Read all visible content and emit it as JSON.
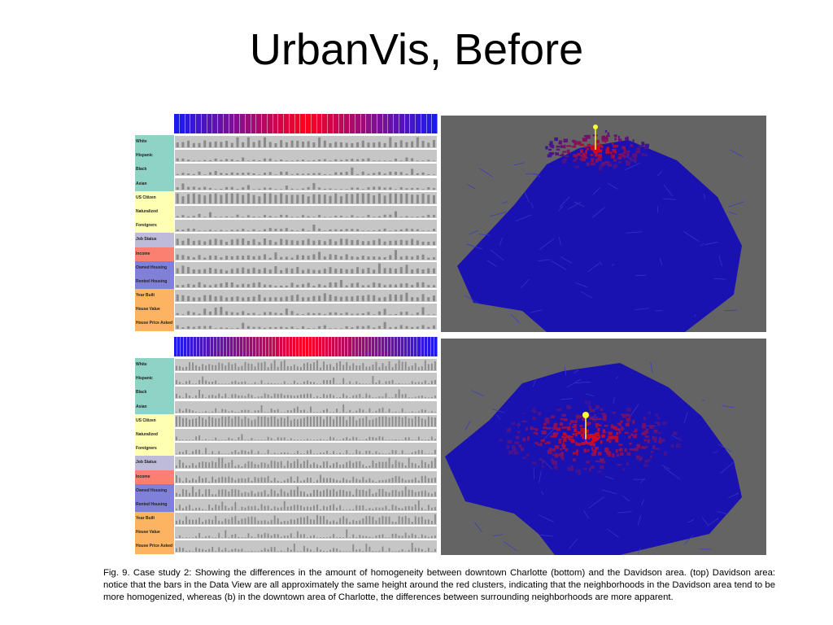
{
  "slide": {
    "title": "UrbanVis, Before"
  },
  "rows": [
    {
      "label": "White",
      "color": "#8fd3c7"
    },
    {
      "label": "Hispanic",
      "color": "#8fd3c7"
    },
    {
      "label": "Black",
      "color": "#8fd3c7"
    },
    {
      "label": "Asian",
      "color": "#8fd3c7"
    },
    {
      "label": "US Citizen",
      "color": "#ffffb3"
    },
    {
      "label": "Naturalized",
      "color": "#ffffb3"
    },
    {
      "label": "Foreigners",
      "color": "#ffffb3"
    },
    {
      "label": "Job Status",
      "color": "#bebada"
    },
    {
      "label": "Income",
      "color": "#fb8072"
    },
    {
      "label": "Owned Housing",
      "color": "#8080d8"
    },
    {
      "label": "Rented Housing",
      "color": "#8080d8"
    },
    {
      "label": "Year Built",
      "color": "#fdb462"
    },
    {
      "label": "House Value",
      "color": "#fdb462"
    },
    {
      "label": "House Price Asked",
      "color": "#fdb462"
    }
  ],
  "panels": {
    "top": {
      "columns": 48,
      "title": "(top) Davidson area"
    },
    "bottom": {
      "columns": 80,
      "title": "downtown Charlotte"
    }
  },
  "colors": {
    "scale_low": "#1a1af0",
    "scale_high": "#ff0000",
    "map_background": "#646464",
    "region": "#1a12b0",
    "marker": "#ffff33"
  },
  "caption": "Fig. 9.  Case study 2:  Showing the differences in the amount of homogeneity between downtown Charlotte (bottom) and the Davidson area. (top) Davidson area:  notice that the bars in the Data View are all approximately the same height around the red clusters, indicating that the neighborhoods in the Davidson area tend to be more homogenized, whereas (b) in the downtown area of Charlotte, the differences between surrounding neighborhoods are more apparent."
}
